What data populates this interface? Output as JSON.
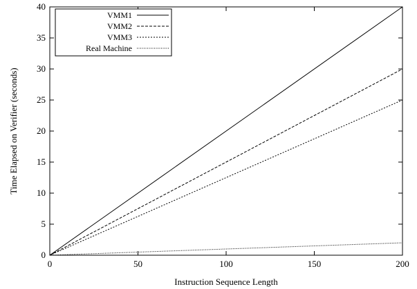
{
  "chart_data": {
    "type": "line",
    "title": "",
    "xlabel": "Instruction Sequence Length",
    "ylabel": "Time Elapsed on Verifier (seconds)",
    "xlim": [
      0,
      200
    ],
    "ylim": [
      0,
      40
    ],
    "x_ticks": [
      0,
      50,
      100,
      150,
      200
    ],
    "y_ticks": [
      0,
      5,
      10,
      15,
      20,
      25,
      30,
      35,
      40
    ],
    "grid": false,
    "legend_position": "top-left",
    "series": [
      {
        "name": "VMM1",
        "style": "solid",
        "x": [
          0,
          200
        ],
        "y": [
          0,
          40
        ]
      },
      {
        "name": "VMM2",
        "style": "dashed",
        "x": [
          0,
          200
        ],
        "y": [
          0,
          30
        ]
      },
      {
        "name": "VMM3",
        "style": "short-dashed",
        "x": [
          0,
          200
        ],
        "y": [
          0,
          25
        ]
      },
      {
        "name": "Real Machine",
        "style": "dotted",
        "x": [
          0,
          200
        ],
        "y": [
          0,
          2
        ]
      }
    ]
  }
}
